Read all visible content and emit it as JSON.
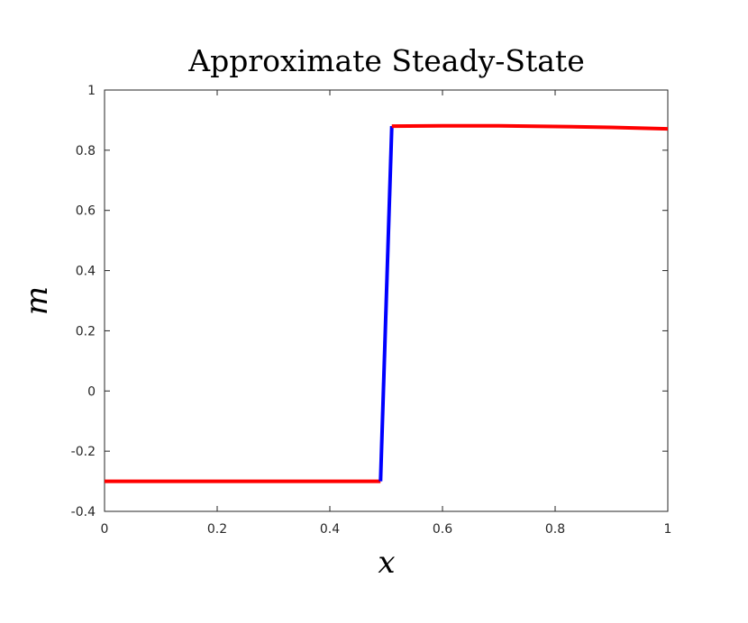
{
  "chart_data": {
    "type": "line",
    "title": "Approximate Steady-State",
    "xlabel": "x",
    "ylabel": "m",
    "xlim": [
      0,
      1
    ],
    "ylim": [
      -0.4,
      1
    ],
    "xticks": [
      0,
      0.2,
      0.4,
      0.6,
      0.8,
      1
    ],
    "xtick_labels": [
      "0",
      "0.2",
      "0.4",
      "0.6",
      "0.8",
      "1"
    ],
    "yticks": [
      -0.4,
      -0.2,
      0,
      0.2,
      0.4,
      0.6,
      0.8,
      1
    ],
    "ytick_labels": [
      "-0.4",
      "-0.2",
      "0",
      "0.2",
      "0.4",
      "0.6",
      "0.8",
      "1"
    ],
    "grid": false,
    "series": [
      {
        "color": "#ff0000",
        "x": [
          0,
          0.1,
          0.2,
          0.3,
          0.4,
          0.49
        ],
        "y": [
          -0.3,
          -0.3,
          -0.3,
          -0.3,
          -0.3,
          -0.3
        ]
      },
      {
        "color": "#0000ff",
        "x": [
          0.49,
          0.51
        ],
        "y": [
          -0.3,
          0.88
        ]
      },
      {
        "color": "#ff0000",
        "x": [
          0.51,
          0.6,
          0.7,
          0.8,
          0.9,
          1.0
        ],
        "y": [
          0.88,
          0.881,
          0.881,
          0.879,
          0.876,
          0.871
        ]
      }
    ]
  }
}
